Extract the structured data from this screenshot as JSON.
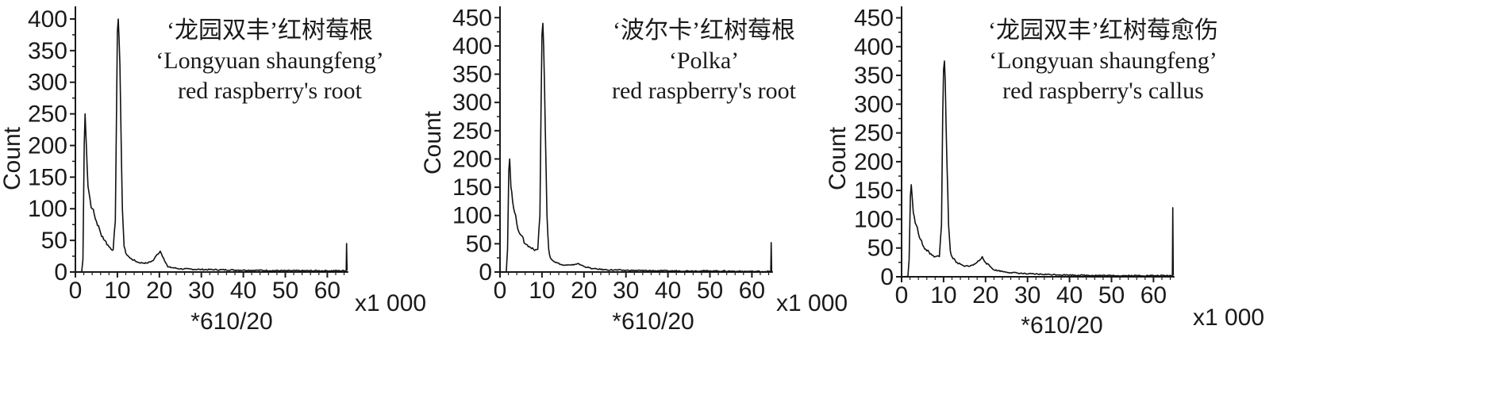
{
  "chart_data": [
    {
      "type": "line",
      "title_lines": [
        "‘龙园双丰’红树莓根",
        "‘Longyuan shaungfeng’",
        "red raspberry's root"
      ],
      "xlabel": "*610/20",
      "x_unit_label": "x1 000",
      "ylabel": "Count",
      "xlim": [
        0,
        65
      ],
      "ylim": [
        0,
        420
      ],
      "x_ticks": [
        "0",
        "10",
        "20",
        "30",
        "40",
        "50",
        "60"
      ],
      "y_ticks": [
        "0",
        "50",
        "100",
        "150",
        "200",
        "250",
        "300",
        "350",
        "400"
      ],
      "grid": false,
      "series": [
        {
          "points": [
            [
              0,
              0
            ],
            [
              1,
              0
            ],
            [
              1.5,
              0
            ],
            [
              1.8,
              20
            ],
            [
              2.1,
              200
            ],
            [
              2.3,
              250
            ],
            [
              2.6,
              200
            ],
            [
              3,
              135
            ],
            [
              3.5,
              115
            ],
            [
              4,
              100
            ],
            [
              5,
              80
            ],
            [
              6,
              62
            ],
            [
              7,
              50
            ],
            [
              8,
              40
            ],
            [
              9,
              35
            ],
            [
              9.5,
              80
            ],
            [
              9.8,
              250
            ],
            [
              10,
              380
            ],
            [
              10.2,
              400
            ],
            [
              10.4,
              370
            ],
            [
              10.8,
              250
            ],
            [
              11.2,
              100
            ],
            [
              11.6,
              40
            ],
            [
              12,
              30
            ],
            [
              13,
              22
            ],
            [
              15,
              15
            ],
            [
              17,
              14
            ],
            [
              18.5,
              18
            ],
            [
              19.5,
              28
            ],
            [
              20.2,
              33
            ],
            [
              21,
              22
            ],
            [
              22,
              8
            ],
            [
              25,
              5
            ],
            [
              30,
              4
            ],
            [
              40,
              3
            ],
            [
              50,
              2
            ],
            [
              60,
              2
            ],
            [
              64.5,
              2
            ],
            [
              64.6,
              45
            ],
            [
              64.7,
              2
            ]
          ]
        }
      ]
    },
    {
      "type": "line",
      "title_lines": [
        "‘波尔卡’红树莓根",
        "‘Polka’",
        "red raspberry's root"
      ],
      "xlabel": "*610/20",
      "x_unit_label": "x1 000",
      "ylabel": "Count",
      "xlim": [
        0,
        65
      ],
      "ylim": [
        0,
        470
      ],
      "x_ticks": [
        "0",
        "10",
        "20",
        "30",
        "40",
        "50",
        "60"
      ],
      "y_ticks": [
        "0",
        "50",
        "100",
        "150",
        "200",
        "250",
        "300",
        "350",
        "400",
        "450"
      ],
      "grid": false,
      "series": [
        {
          "points": [
            [
              0,
              0
            ],
            [
              1,
              0
            ],
            [
              1.5,
              0
            ],
            [
              1.8,
              40
            ],
            [
              2.1,
              180
            ],
            [
              2.3,
              200
            ],
            [
              2.6,
              150
            ],
            [
              3,
              125
            ],
            [
              3.5,
              105
            ],
            [
              4,
              85
            ],
            [
              5,
              65
            ],
            [
              6,
              50
            ],
            [
              7,
              45
            ],
            [
              8,
              40
            ],
            [
              9,
              40
            ],
            [
              9.5,
              100
            ],
            [
              9.8,
              300
            ],
            [
              10,
              420
            ],
            [
              10.2,
              440
            ],
            [
              10.4,
              400
            ],
            [
              10.8,
              250
            ],
            [
              11.2,
              100
            ],
            [
              11.6,
              40
            ],
            [
              12,
              25
            ],
            [
              13,
              18
            ],
            [
              15,
              12
            ],
            [
              17,
              12
            ],
            [
              18.5,
              15
            ],
            [
              20,
              10
            ],
            [
              22,
              6
            ],
            [
              25,
              4
            ],
            [
              30,
              3
            ],
            [
              40,
              2
            ],
            [
              50,
              2
            ],
            [
              60,
              1
            ],
            [
              64.5,
              1
            ],
            [
              64.6,
              52
            ],
            [
              64.7,
              1
            ]
          ]
        }
      ]
    },
    {
      "type": "line",
      "title_lines": [
        "‘龙园双丰’红树莓愈伤",
        "‘Longyuan shaungfeng’",
        "red raspberry's callus"
      ],
      "xlabel": "*610/20",
      "x_unit_label": "x1 000",
      "ylabel": "Count",
      "xlim": [
        0,
        65
      ],
      "ylim": [
        0,
        470
      ],
      "x_ticks": [
        "0",
        "10",
        "20",
        "30",
        "40",
        "50",
        "60"
      ],
      "y_ticks": [
        "0",
        "50",
        "100",
        "150",
        "200",
        "250",
        "300",
        "350",
        "400",
        "450"
      ],
      "grid": false,
      "series": [
        {
          "points": [
            [
              0,
              0
            ],
            [
              1,
              0
            ],
            [
              1.5,
              0
            ],
            [
              1.8,
              30
            ],
            [
              2.1,
              140
            ],
            [
              2.3,
              160
            ],
            [
              2.6,
              130
            ],
            [
              3,
              105
            ],
            [
              3.5,
              90
            ],
            [
              4,
              75
            ],
            [
              5,
              55
            ],
            [
              6,
              45
            ],
            [
              7,
              40
            ],
            [
              8,
              35
            ],
            [
              9,
              35
            ],
            [
              9.5,
              90
            ],
            [
              9.8,
              280
            ],
            [
              10,
              360
            ],
            [
              10.2,
              375
            ],
            [
              10.4,
              340
            ],
            [
              10.8,
              200
            ],
            [
              11.2,
              90
            ],
            [
              11.6,
              45
            ],
            [
              12,
              35
            ],
            [
              13,
              25
            ],
            [
              15,
              18
            ],
            [
              17,
              20
            ],
            [
              18.5,
              28
            ],
            [
              19.2,
              35
            ],
            [
              20,
              25
            ],
            [
              22,
              12
            ],
            [
              25,
              8
            ],
            [
              30,
              5
            ],
            [
              40,
              3
            ],
            [
              50,
              2
            ],
            [
              60,
              2
            ],
            [
              64.5,
              2
            ],
            [
              64.6,
              120
            ],
            [
              64.7,
              2
            ]
          ]
        }
      ]
    }
  ]
}
